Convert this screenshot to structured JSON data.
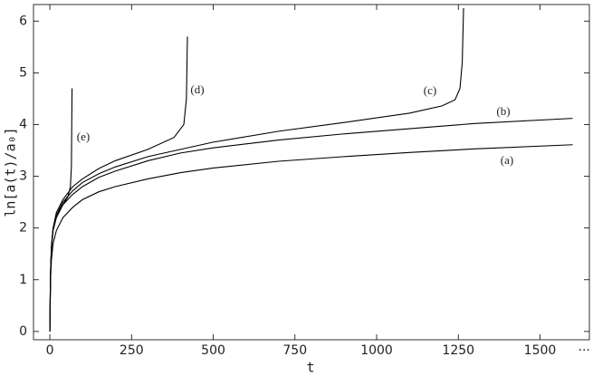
{
  "chart_data": {
    "type": "line",
    "x_label": "t",
    "y_label": "ln[a(t)/a₀]",
    "xlim": [
      -50,
      1651
    ],
    "ylim": [
      -0.16,
      6.32
    ],
    "xticks": [
      0,
      250,
      500,
      750,
      1000,
      1250,
      1500,
      {
        "value": 1635,
        "label": "···"
      }
    ],
    "yticks": [
      0,
      1,
      2,
      3,
      4,
      5,
      6
    ],
    "grid": false,
    "series": [
      {
        "name": "(a)",
        "color": "#000000",
        "x": [
          0,
          2,
          5,
          10,
          20,
          40,
          70,
          100,
          150,
          200,
          300,
          400,
          500,
          700,
          900,
          1100,
          1300,
          1600
        ],
        "values": [
          0,
          1.0,
          1.4,
          1.7,
          1.95,
          2.2,
          2.4,
          2.55,
          2.7,
          2.8,
          2.95,
          3.07,
          3.16,
          3.29,
          3.38,
          3.46,
          3.53,
          3.61
        ]
      },
      {
        "name": "(b)",
        "color": "#000000",
        "x": [
          0,
          2,
          5,
          10,
          20,
          40,
          70,
          100,
          150,
          200,
          300,
          400,
          500,
          700,
          900,
          1100,
          1300,
          1600
        ],
        "values": [
          0,
          1.1,
          1.6,
          1.95,
          2.2,
          2.45,
          2.65,
          2.8,
          2.98,
          3.1,
          3.3,
          3.45,
          3.55,
          3.7,
          3.82,
          3.92,
          4.02,
          4.12
        ]
      },
      {
        "name": "(c)",
        "color": "#000000",
        "x": [
          0,
          2,
          5,
          10,
          20,
          40,
          70,
          100,
          150,
          200,
          300,
          400,
          500,
          700,
          900,
          1100,
          1200,
          1240,
          1255,
          1262,
          1266
        ],
        "values": [
          0,
          1.1,
          1.65,
          2.0,
          2.25,
          2.5,
          2.72,
          2.88,
          3.05,
          3.18,
          3.38,
          3.52,
          3.66,
          3.87,
          4.04,
          4.22,
          4.36,
          4.48,
          4.7,
          5.2,
          6.25
        ]
      },
      {
        "name": "(d)",
        "color": "#000000",
        "x": [
          0,
          2,
          5,
          10,
          20,
          40,
          70,
          100,
          150,
          200,
          300,
          380,
          410,
          418,
          421
        ],
        "values": [
          0,
          1.1,
          1.65,
          2.0,
          2.3,
          2.55,
          2.8,
          2.95,
          3.15,
          3.3,
          3.52,
          3.75,
          4.0,
          4.5,
          5.7
        ]
      },
      {
        "name": "(e)",
        "color": "#000000",
        "x": [
          0,
          2,
          5,
          10,
          20,
          40,
          55,
          63,
          66,
          68
        ],
        "values": [
          0,
          1.1,
          1.65,
          2.0,
          2.25,
          2.45,
          2.6,
          2.8,
          3.2,
          4.7
        ]
      }
    ]
  }
}
